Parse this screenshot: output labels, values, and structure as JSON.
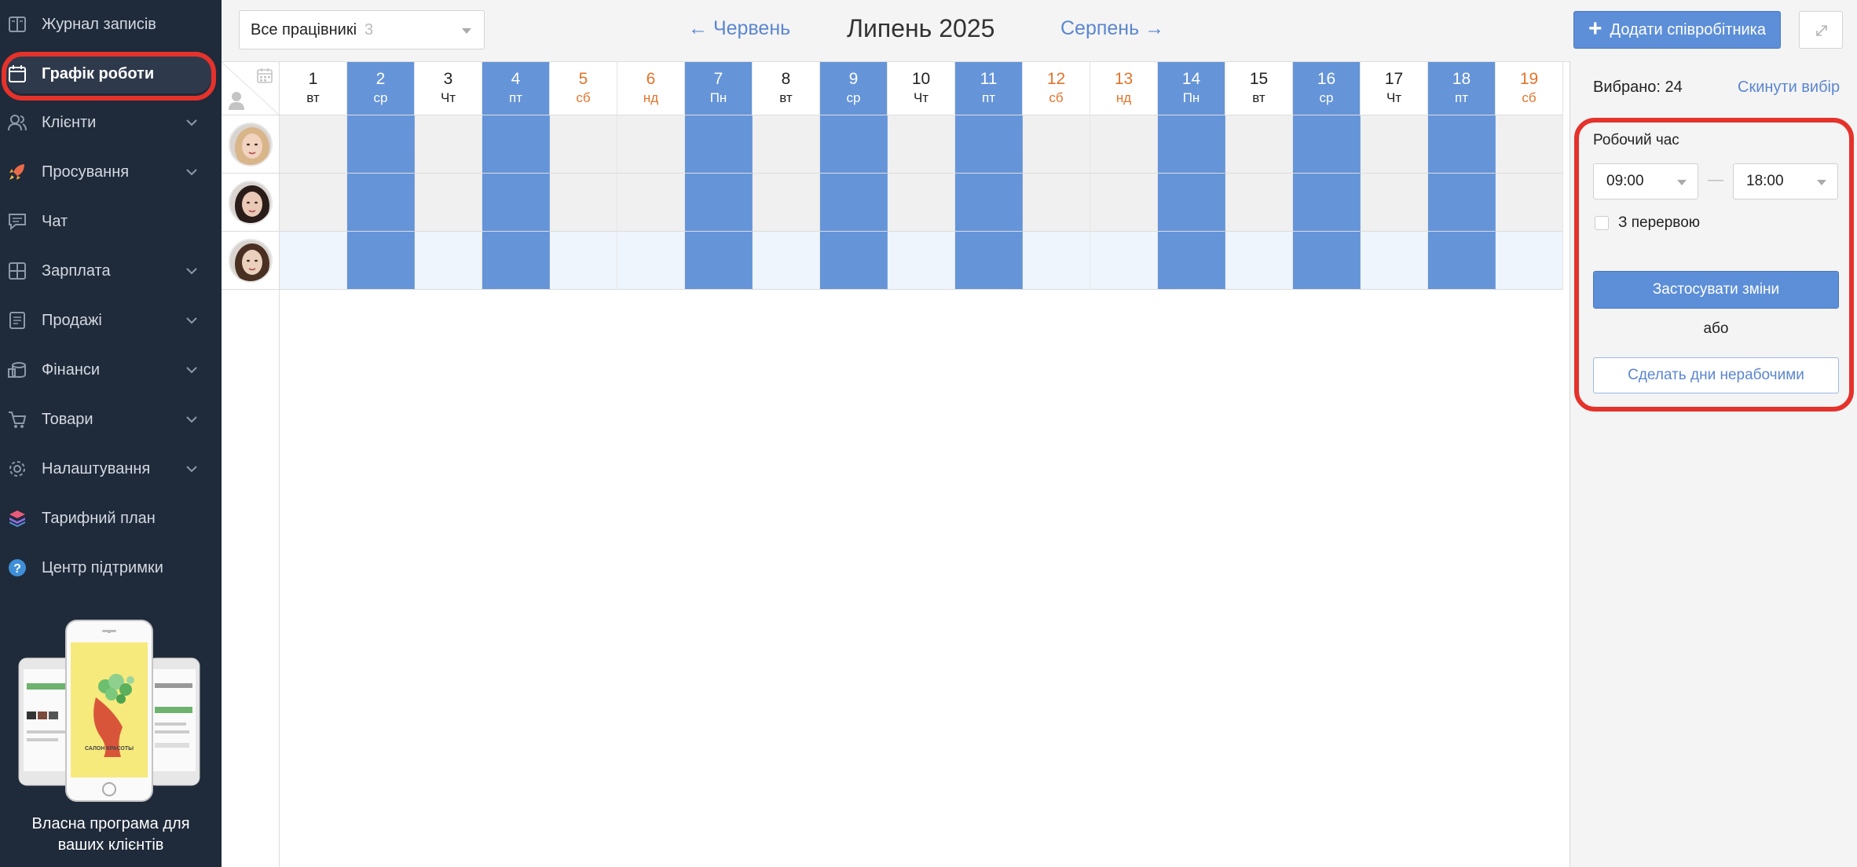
{
  "sidebar": {
    "items": [
      {
        "label": "Журнал записів",
        "icon": "journal-icon",
        "expandable": false
      },
      {
        "label": "Графік роботи",
        "icon": "calendar-icon",
        "expandable": false,
        "active": true
      },
      {
        "label": "Клієнти",
        "icon": "clients-icon",
        "expandable": true
      },
      {
        "label": "Просування",
        "icon": "rocket-icon",
        "expandable": true
      },
      {
        "label": "Чат",
        "icon": "chat-icon",
        "expandable": false
      },
      {
        "label": "Зарплата",
        "icon": "salary-icon",
        "expandable": true
      },
      {
        "label": "Продажі",
        "icon": "sales-icon",
        "expandable": true
      },
      {
        "label": "Фінанси",
        "icon": "finance-icon",
        "expandable": true
      },
      {
        "label": "Товари",
        "icon": "cart-icon",
        "expandable": true
      },
      {
        "label": "Налаштування",
        "icon": "gear-icon",
        "expandable": true
      },
      {
        "label": "Тарифний план",
        "icon": "layers-icon",
        "expandable": false
      },
      {
        "label": "Центр підтримки",
        "icon": "help-icon",
        "expandable": false
      }
    ],
    "promo": {
      "phone_label": "САЛОН КРАСОТЫ",
      "text_line1": "Власна програма для",
      "text_line2": "ваших клієнтів"
    }
  },
  "toolbar": {
    "employee_filter": "Все працівникі",
    "employee_count": "3",
    "prev_month": "← Червень",
    "current_month": "Липень 2025",
    "next_month": "Серпень →",
    "add_employee": "Додати співробітника"
  },
  "schedule": {
    "days": [
      {
        "num": "1",
        "name": "вт",
        "type": "off"
      },
      {
        "num": "2",
        "name": "ср",
        "type": "work"
      },
      {
        "num": "3",
        "name": "Чт",
        "type": "off"
      },
      {
        "num": "4",
        "name": "пт",
        "type": "work"
      },
      {
        "num": "5",
        "name": "сб",
        "type": "weekend"
      },
      {
        "num": "6",
        "name": "нд",
        "type": "weekend"
      },
      {
        "num": "7",
        "name": "Пн",
        "type": "work"
      },
      {
        "num": "8",
        "name": "вт",
        "type": "off"
      },
      {
        "num": "9",
        "name": "ср",
        "type": "work"
      },
      {
        "num": "10",
        "name": "Чт",
        "type": "off"
      },
      {
        "num": "11",
        "name": "пт",
        "type": "work"
      },
      {
        "num": "12",
        "name": "сб",
        "type": "weekend"
      },
      {
        "num": "13",
        "name": "нд",
        "type": "weekend"
      },
      {
        "num": "14",
        "name": "Пн",
        "type": "work"
      },
      {
        "num": "15",
        "name": "вт",
        "type": "off"
      },
      {
        "num": "16",
        "name": "ср",
        "type": "work"
      },
      {
        "num": "17",
        "name": "Чт",
        "type": "off"
      },
      {
        "num": "18",
        "name": "пт",
        "type": "work"
      },
      {
        "num": "19",
        "name": "сб",
        "type": "weekend"
      }
    ],
    "employees": [
      {
        "avatar": "avatar-employee-1",
        "hair": "#d9b58a",
        "skin": "#f1d3c0"
      },
      {
        "avatar": "avatar-employee-2",
        "hair": "#2a1c18",
        "skin": "#e9c9b6"
      },
      {
        "avatar": "avatar-employee-3",
        "hair": "#4a3022",
        "skin": "#ead0bd",
        "selected": true
      }
    ]
  },
  "panel": {
    "selected_label": "Вибрано: 24",
    "reset_link": "Скинути вибір",
    "working_time_label": "Робочий час",
    "time_from": "09:00",
    "time_to": "18:00",
    "dash": "—",
    "with_break_label": "З перервою",
    "apply_button": "Застосувати зміни",
    "or_text": "або",
    "make_nonworking_button": "Сделать дни нерабочими"
  },
  "colors": {
    "sidebar_bg": "#1f2a3a",
    "work_day": "#6594d8",
    "weekend_text": "#e0742b",
    "link": "#5b86d0",
    "highlight": "#e5322b"
  }
}
